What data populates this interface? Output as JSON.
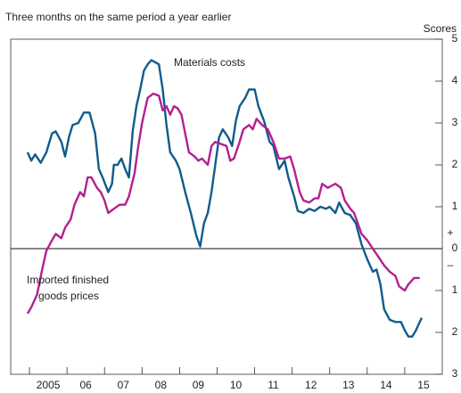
{
  "chart_data": {
    "type": "line",
    "subtitle": "Three months on the same period a year earlier",
    "y_axis_label": "Scores",
    "annotations": [
      "Materials costs",
      "Imported finished",
      "goods prices",
      "+",
      "–"
    ],
    "xlim": [
      2004.5,
      2016
    ],
    "xticks": [
      {
        "value": 2005,
        "label": "2005"
      },
      {
        "value": 2006,
        "label": "06"
      },
      {
        "value": 2007,
        "label": "07"
      },
      {
        "value": 2008,
        "label": "08"
      },
      {
        "value": 2009,
        "label": "09"
      },
      {
        "value": 2010,
        "label": "10"
      },
      {
        "value": 2011,
        "label": "11"
      },
      {
        "value": 2012,
        "label": "12"
      },
      {
        "value": 2013,
        "label": "13"
      },
      {
        "value": 2014,
        "label": "14"
      },
      {
        "value": 2015,
        "label": "15"
      }
    ],
    "ylim": [
      -3,
      5
    ],
    "yticks": [
      5,
      4,
      3,
      2,
      1,
      0,
      {
        "value": -1,
        "label": "1"
      },
      {
        "value": -2,
        "label": "2"
      },
      {
        "value": -3,
        "label": "3"
      }
    ],
    "series": [
      {
        "name": "Materials costs",
        "color": "#0f5c8c",
        "x": [
          2004.95,
          2005.05,
          2005.15,
          2005.3,
          2005.45,
          2005.6,
          2005.7,
          2005.85,
          2005.95,
          2006.05,
          2006.15,
          2006.3,
          2006.45,
          2006.6,
          2006.75,
          2006.85,
          2006.95,
          2007.1,
          2007.2,
          2007.25,
          2007.35,
          2007.45,
          2007.55,
          2007.65,
          2007.75,
          2007.85,
          2007.95,
          2008.05,
          2008.15,
          2008.25,
          2008.35,
          2008.45,
          2008.55,
          2008.65,
          2008.75,
          2008.9,
          2009.0,
          2009.15,
          2009.3,
          2009.45,
          2009.55,
          2009.65,
          2009.75,
          2009.85,
          2009.95,
          2010.05,
          2010.15,
          2010.3,
          2010.4,
          2010.5,
          2010.6,
          2010.75,
          2010.85,
          2011.0,
          2011.1,
          2011.25,
          2011.4,
          2011.5,
          2011.65,
          2011.8,
          2011.9,
          2012.05,
          2012.15,
          2012.3,
          2012.45,
          2012.6,
          2012.75,
          2012.9,
          2013.0,
          2013.15,
          2013.25,
          2013.4,
          2013.55,
          2013.7,
          2013.85,
          2014.0,
          2014.15,
          2014.25,
          2014.35,
          2014.45,
          2014.6,
          2014.75,
          2014.9,
          2015.0,
          2015.1,
          2015.2,
          2015.3,
          2015.45
        ],
        "values": [
          2.3,
          2.1,
          2.25,
          2.05,
          2.3,
          2.75,
          2.8,
          2.55,
          2.2,
          2.65,
          2.95,
          3.0,
          3.25,
          3.25,
          2.75,
          1.9,
          1.7,
          1.35,
          1.55,
          2.0,
          2.0,
          2.15,
          1.9,
          1.7,
          2.8,
          3.4,
          3.8,
          4.25,
          4.4,
          4.5,
          4.45,
          4.4,
          3.8,
          2.95,
          2.3,
          2.1,
          1.9,
          1.35,
          0.85,
          0.3,
          0.05,
          0.6,
          0.85,
          1.35,
          2.0,
          2.65,
          2.85,
          2.65,
          2.45,
          3.05,
          3.4,
          3.6,
          3.8,
          3.8,
          3.4,
          3.05,
          2.55,
          2.45,
          1.9,
          2.1,
          1.7,
          1.25,
          0.9,
          0.85,
          0.95,
          0.9,
          1.0,
          0.95,
          1.0,
          0.85,
          1.1,
          0.85,
          0.8,
          0.6,
          0.1,
          -0.25,
          -0.55,
          -0.5,
          -0.85,
          -1.45,
          -1.7,
          -1.75,
          -1.75,
          -1.95,
          -2.1,
          -2.1,
          -1.95,
          -1.65
        ]
      },
      {
        "name": "Imported finished goods prices",
        "color": "#b3208f",
        "x": [
          2004.95,
          2005.05,
          2005.2,
          2005.35,
          2005.45,
          2005.6,
          2005.7,
          2005.85,
          2005.95,
          2006.1,
          2006.2,
          2006.35,
          2006.45,
          2006.55,
          2006.65,
          2006.8,
          2006.9,
          2007.0,
          2007.1,
          2007.25,
          2007.4,
          2007.55,
          2007.65,
          2007.8,
          2007.9,
          2008.0,
          2008.15,
          2008.3,
          2008.45,
          2008.55,
          2008.65,
          2008.75,
          2008.85,
          2008.95,
          2009.05,
          2009.15,
          2009.25,
          2009.4,
          2009.5,
          2009.6,
          2009.75,
          2009.85,
          2009.95,
          2010.1,
          2010.25,
          2010.35,
          2010.45,
          2010.6,
          2010.7,
          2010.85,
          2010.95,
          2011.05,
          2011.2,
          2011.35,
          2011.5,
          2011.65,
          2011.8,
          2011.95,
          2012.05,
          2012.2,
          2012.3,
          2012.45,
          2012.6,
          2012.7,
          2012.8,
          2012.95,
          2013.05,
          2013.15,
          2013.3,
          2013.4,
          2013.55,
          2013.65,
          2013.85,
          2014.0,
          2014.15,
          2014.3,
          2014.45,
          2014.6,
          2014.75,
          2014.85,
          2015.0,
          2015.1,
          2015.25,
          2015.4
        ],
        "values": [
          -1.55,
          -1.4,
          -1.1,
          -0.45,
          -0.05,
          0.2,
          0.35,
          0.25,
          0.5,
          0.7,
          1.05,
          1.35,
          1.25,
          1.7,
          1.7,
          1.45,
          1.35,
          1.15,
          0.85,
          0.95,
          1.05,
          1.05,
          1.25,
          1.8,
          2.45,
          3.0,
          3.6,
          3.7,
          3.65,
          3.3,
          3.4,
          3.2,
          3.4,
          3.35,
          3.2,
          2.75,
          2.3,
          2.2,
          2.1,
          2.15,
          2.0,
          2.45,
          2.55,
          2.5,
          2.45,
          2.1,
          2.15,
          2.55,
          2.85,
          2.95,
          2.85,
          3.1,
          2.95,
          2.85,
          2.55,
          2.15,
          2.15,
          2.2,
          1.9,
          1.35,
          1.15,
          1.1,
          1.2,
          1.2,
          1.55,
          1.45,
          1.5,
          1.55,
          1.45,
          1.15,
          0.95,
          0.85,
          0.35,
          0.2,
          0,
          -0.2,
          -0.4,
          -0.55,
          -0.65,
          -0.9,
          -1.0,
          -0.85,
          -0.7,
          -0.7
        ]
      }
    ]
  }
}
